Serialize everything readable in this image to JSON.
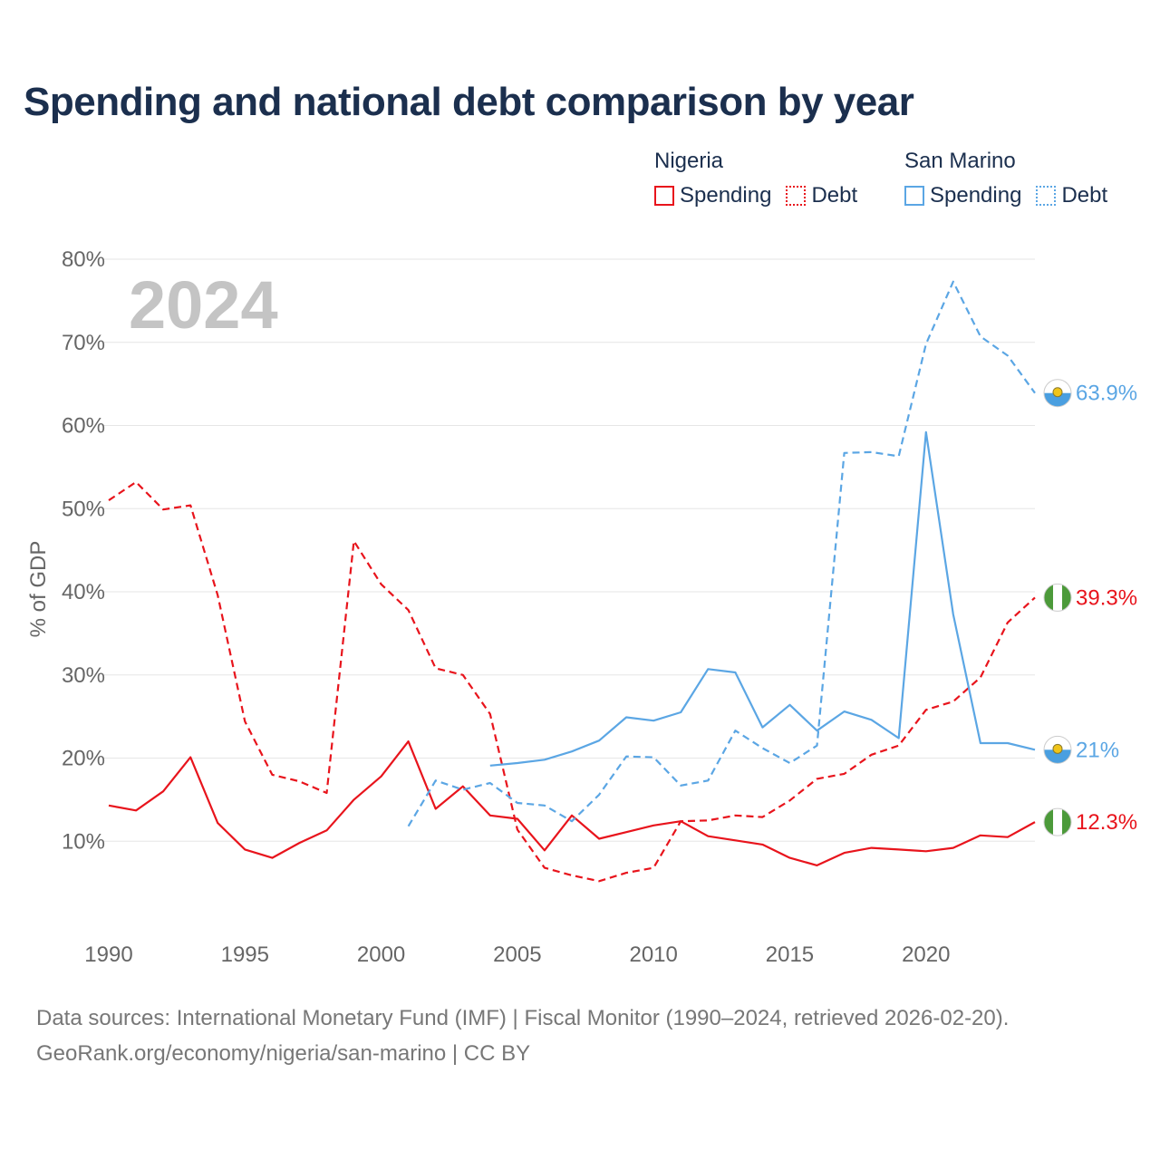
{
  "title": "Spending and national debt comparison by year",
  "legend": {
    "nigeria": {
      "name": "Nigeria",
      "spending": "Spending",
      "debt": "Debt"
    },
    "san_marino": {
      "name": "San Marino",
      "spending": "Spending",
      "debt": "Debt"
    }
  },
  "colors": {
    "nigeria": "#e8141c",
    "san_marino": "#5ba6e4",
    "title": "#1b2f4e",
    "axis_text": "#666666",
    "grid": "#e6e6e6",
    "year_watermark": "#c4c4c4"
  },
  "chart_data": {
    "type": "line",
    "year_watermark": "2024",
    "ylabel": "% of GDP",
    "xlabel": "",
    "xlim": [
      1990,
      2024
    ],
    "ylim": [
      0,
      80
    ],
    "x_ticks": [
      1990,
      1995,
      2000,
      2005,
      2010,
      2015,
      2020
    ],
    "y_ticks": [
      10,
      20,
      30,
      40,
      50,
      60,
      70,
      80
    ],
    "y_tick_labels": [
      "10%",
      "20%",
      "30%",
      "40%",
      "50%",
      "60%",
      "70%",
      "80%"
    ],
    "series": [
      {
        "name": "Nigeria Spending",
        "country": "nigeria",
        "style": "solid",
        "end_label": "12.3%",
        "x": [
          1990,
          1991,
          1992,
          1993,
          1994,
          1995,
          1996,
          1997,
          1998,
          1999,
          2000,
          2001,
          2002,
          2003,
          2004,
          2005,
          2006,
          2007,
          2008,
          2009,
          2010,
          2011,
          2012,
          2013,
          2014,
          2015,
          2016,
          2017,
          2018,
          2019,
          2020,
          2021,
          2022,
          2023,
          2024
        ],
        "values": [
          14.3,
          13.7,
          16.0,
          20.1,
          12.2,
          9.0,
          8.0,
          9.8,
          11.3,
          15.0,
          17.8,
          22.0,
          13.9,
          16.6,
          13.1,
          12.7,
          8.9,
          13.1,
          10.3,
          11.1,
          11.9,
          12.4,
          10.6,
          10.1,
          9.6,
          8.0,
          7.1,
          8.6,
          9.2,
          9.0,
          8.8,
          9.2,
          10.7,
          10.5,
          12.3
        ]
      },
      {
        "name": "Nigeria Debt",
        "country": "nigeria",
        "style": "dashed",
        "end_label": "39.3%",
        "x": [
          1990,
          1991,
          1992,
          1993,
          1994,
          1995,
          1996,
          1997,
          1998,
          1999,
          2000,
          2001,
          2002,
          2003,
          2004,
          2005,
          2006,
          2007,
          2008,
          2009,
          2010,
          2011,
          2012,
          2013,
          2014,
          2015,
          2016,
          2017,
          2018,
          2019,
          2020,
          2021,
          2022,
          2023,
          2024
        ],
        "values": [
          51.0,
          53.2,
          49.9,
          50.4,
          39.6,
          24.4,
          18.0,
          17.2,
          15.8,
          46.1,
          40.9,
          37.8,
          30.8,
          30.0,
          25.3,
          11.4,
          6.8,
          5.9,
          5.2,
          6.2,
          6.8,
          12.4,
          12.5,
          13.1,
          12.9,
          14.9,
          17.5,
          18.1,
          20.4,
          21.5,
          25.8,
          26.8,
          29.7,
          36.3,
          39.3
        ]
      },
      {
        "name": "San Marino Spending",
        "country": "san_marino",
        "style": "solid",
        "end_label": "21%",
        "x": [
          2004,
          2005,
          2006,
          2007,
          2008,
          2009,
          2010,
          2011,
          2012,
          2013,
          2014,
          2015,
          2016,
          2017,
          2018,
          2019,
          2020,
          2021,
          2022,
          2023,
          2024
        ],
        "values": [
          19.1,
          19.4,
          19.8,
          20.8,
          22.1,
          24.9,
          24.5,
          25.5,
          30.7,
          30.3,
          23.7,
          26.4,
          23.3,
          25.6,
          24.6,
          22.4,
          59.2,
          37.3,
          21.8,
          21.8,
          21.0
        ]
      },
      {
        "name": "San Marino Debt",
        "country": "san_marino",
        "style": "dashed",
        "end_label": "63.9%",
        "x": [
          2001,
          2002,
          2003,
          2004,
          2005,
          2006,
          2007,
          2008,
          2009,
          2010,
          2011,
          2012,
          2013,
          2014,
          2015,
          2016,
          2017,
          2018,
          2019,
          2020,
          2021,
          2022,
          2023,
          2024
        ],
        "values": [
          11.8,
          17.3,
          16.2,
          17.0,
          14.6,
          14.3,
          12.4,
          15.6,
          20.2,
          20.1,
          16.7,
          17.3,
          23.3,
          21.2,
          19.4,
          21.5,
          56.7,
          56.8,
          56.3,
          69.8,
          77.3,
          70.7,
          68.4,
          63.9
        ]
      }
    ]
  },
  "footer": {
    "line1": "Data sources: International Monetary Fund (IMF) | Fiscal Monitor (1990–2024, retrieved 2026-02-20).",
    "line2": "GeoRank.org/economy/nigeria/san-marino | CC BY"
  }
}
